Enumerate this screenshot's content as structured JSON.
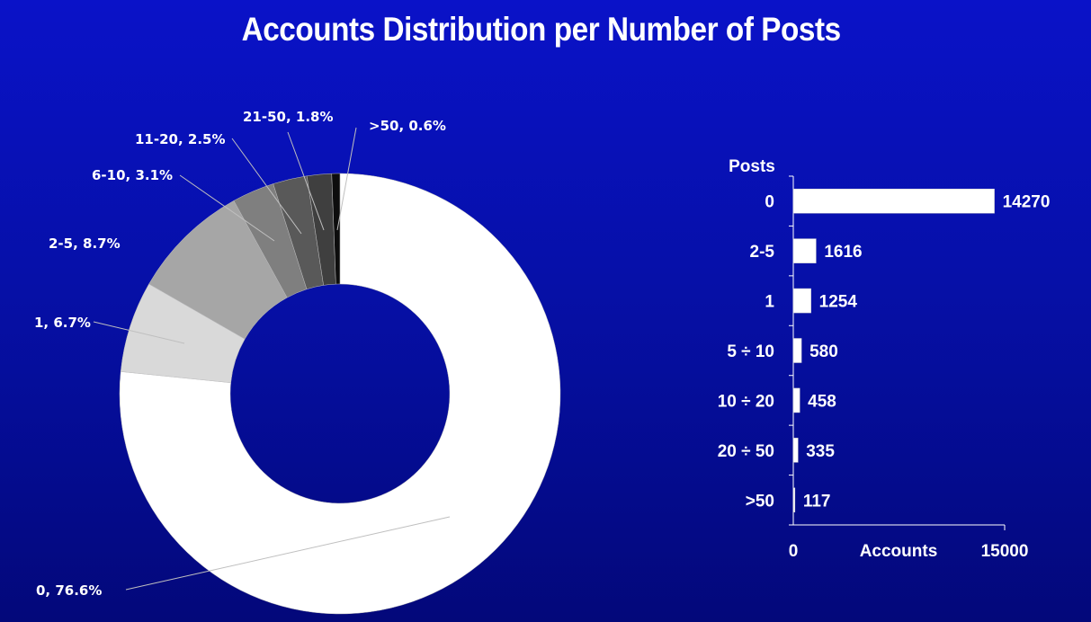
{
  "title": "Accounts Distribution per Number of Posts",
  "chart_data": [
    {
      "type": "pie",
      "subtype": "donut",
      "slices": [
        {
          "label": "0",
          "value": 76.6,
          "display": "0, 76.6%",
          "color": "#ffffff"
        },
        {
          "label": "1",
          "value": 6.7,
          "display": "1, 6.7%",
          "color": "#d9d9d9"
        },
        {
          "label": "2-5",
          "value": 8.7,
          "display": "2-5, 8.7%",
          "color": "#a6a6a6"
        },
        {
          "label": "6-10",
          "value": 3.1,
          "display": "6-10, 3.1%",
          "color": "#7f7f7f"
        },
        {
          "label": "11-20",
          "value": 2.5,
          "display": "11-20, 2.5%",
          "color": "#595959"
        },
        {
          "label": "21-50",
          "value": 1.8,
          "display": "21-50, 1.8%",
          "color": "#3f3f3f"
        },
        {
          "label": ">50",
          "value": 0.6,
          "display": ">50, 0.6%",
          "color": "#0d0d0d"
        }
      ]
    },
    {
      "type": "bar",
      "orientation": "horizontal",
      "ylabel": "Posts",
      "xlabel": "Accounts",
      "xlim": [
        0,
        15000
      ],
      "xticks": [
        "0",
        "15000"
      ],
      "categories": [
        "0",
        "2-5",
        "1",
        "5 ÷ 10",
        "10 ÷  20",
        "20 ÷ 50",
        ">50"
      ],
      "values": [
        14270,
        1616,
        1254,
        580,
        458,
        335,
        117
      ],
      "value_labels": [
        "14270",
        "1616",
        "1254",
        "580",
        "458",
        "335",
        "117"
      ],
      "bar_color": "#ffffff"
    }
  ]
}
